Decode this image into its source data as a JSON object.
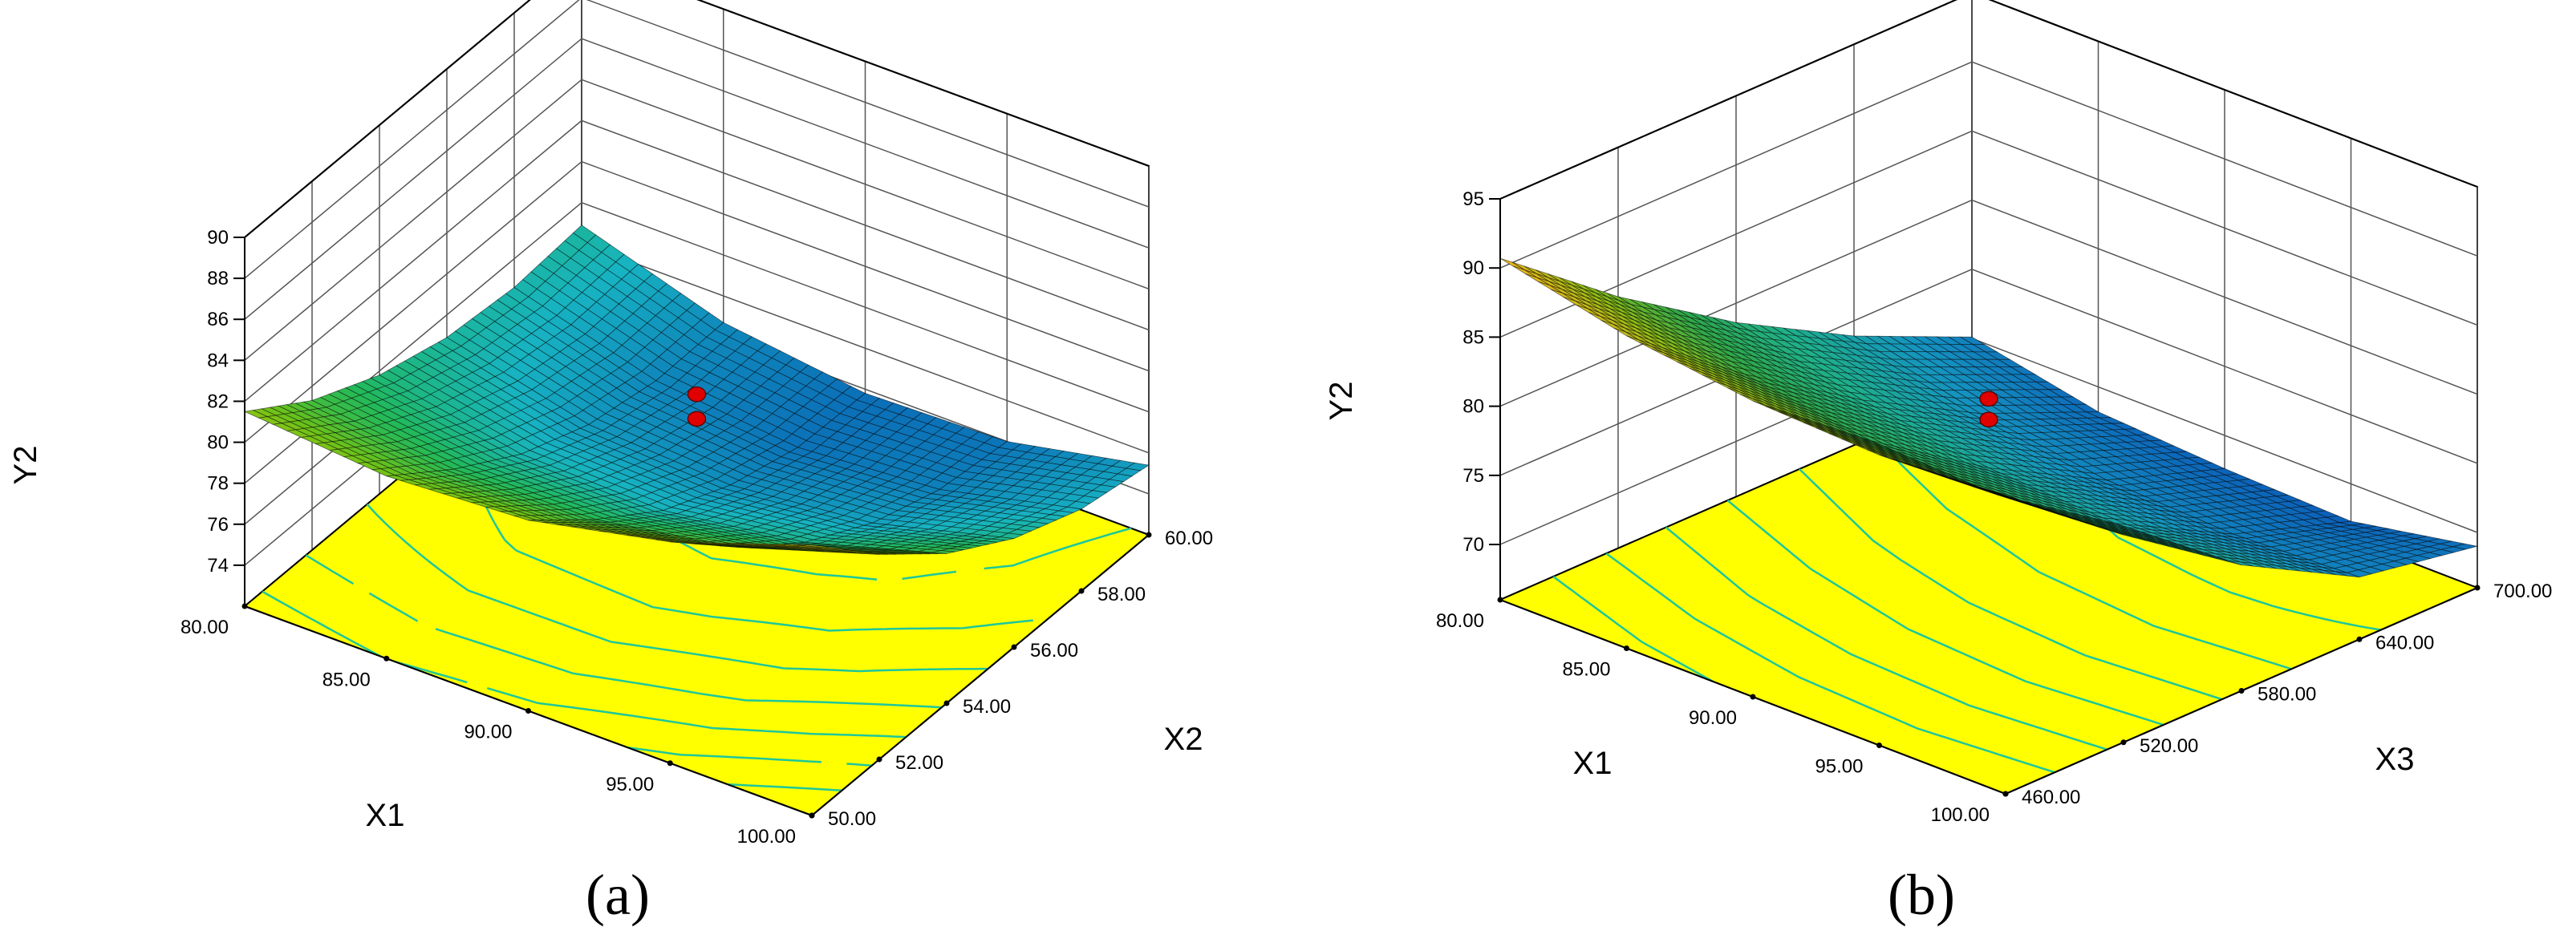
{
  "chart_data": [
    {
      "panel": "(a)",
      "type": "surface3d",
      "zlabel": "Y2",
      "xlabel": "X1",
      "ylabel": "X2",
      "x_ticks": [
        "80.00",
        "85.00",
        "90.00",
        "95.00",
        "100.00"
      ],
      "y_ticks": [
        "50.00",
        "52.00",
        "54.00",
        "56.00",
        "58.00",
        "60.00"
      ],
      "z_ticks": [
        "74",
        "76",
        "78",
        "80",
        "82",
        "84",
        "86",
        "88",
        "90"
      ],
      "xlim": [
        80,
        100
      ],
      "ylim": [
        50,
        60
      ],
      "zlim": [
        72,
        90
      ],
      "grid_x": [
        80,
        85,
        90,
        95,
        100
      ],
      "grid_y": [
        50,
        52,
        54,
        56,
        58,
        60
      ],
      "grid_z": [
        [
          81.5,
          79.3,
          77.8,
          76.9,
          76.6,
          76.9
        ],
        [
          80.9,
          78.5,
          76.5,
          75.2,
          74.6,
          74.7
        ],
        [
          81.3,
          78.6,
          76.3,
          74.8,
          73.9,
          73.8
        ],
        [
          82.8,
          79.8,
          77.3,
          75.5,
          74.4,
          74.0
        ],
        [
          85.2,
          82.0,
          79.3,
          77.3,
          76.0,
          75.4
        ]
      ],
      "design_points": [
        {
          "x": 90,
          "y": 55,
          "z": 80.6
        },
        {
          "x": 90,
          "y": 55,
          "z": 79.4
        }
      ],
      "colormap": [
        "#0b6fb8",
        "#17b3c2",
        "#22b95a",
        "#6cc219",
        "#b9c90e",
        "#f7ee0c"
      ],
      "contour_color": "#ffff00",
      "contour_line_color": "#1ec79a"
    },
    {
      "panel": "(b)",
      "type": "surface3d",
      "zlabel": "Y2",
      "xlabel": "X1",
      "ylabel": "X3",
      "x_ticks": [
        "80.00",
        "85.00",
        "90.00",
        "95.00",
        "100.00"
      ],
      "y_ticks": [
        "460.00",
        "520.00",
        "580.00",
        "640.00",
        "700.00"
      ],
      "z_ticks": [
        "70",
        "75",
        "80",
        "85",
        "90",
        "95"
      ],
      "xlim": [
        80,
        100
      ],
      "ylim": [
        460,
        700
      ],
      "zlim": [
        66,
        95
      ],
      "grid_x": [
        80,
        85,
        90,
        95,
        100
      ],
      "grid_y": [
        460,
        520,
        580,
        640,
        700
      ],
      "grid_z": [
        [
          90.7,
          84.2,
          78.6,
          73.9,
          70.1
        ],
        [
          88.6,
          82.1,
          76.5,
          71.8,
          68.2
        ],
        [
          87.4,
          80.8,
          75.1,
          70.5,
          67.6
        ],
        [
          87.0,
          80.4,
          74.6,
          70.1,
          67.3
        ],
        [
          87.6,
          81.0,
          75.1,
          70.5,
          69.0
        ]
      ],
      "design_points": [
        {
          "x": 90,
          "y": 580,
          "z": 80.1
        },
        {
          "x": 90,
          "y": 580,
          "z": 78.6
        }
      ],
      "colormap": [
        "#0b5fb8",
        "#1593c0",
        "#1fb08a",
        "#2ea84a",
        "#8ebe15",
        "#f2b81a"
      ],
      "contour_color": "#ffff00",
      "contour_line_color": "#1ec79a"
    }
  ]
}
